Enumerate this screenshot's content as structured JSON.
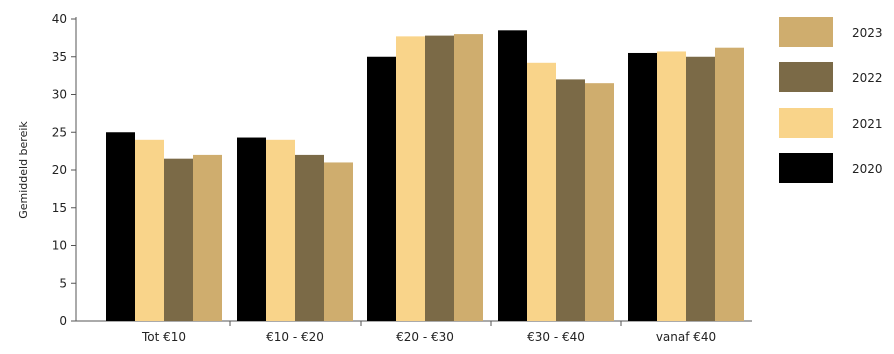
{
  "chart_data": {
    "type": "bar",
    "title": "",
    "xlabel": "",
    "ylabel": "Gemiddeld bereik",
    "ylim": [
      0,
      40
    ],
    "yticks": [
      0,
      5,
      10,
      15,
      20,
      25,
      30,
      35,
      40
    ],
    "grid": false,
    "legend_position": "right",
    "categories": [
      "Tot €10",
      "€10 - €20",
      "€20 - €30",
      "€30 - €40",
      "vanaf €40"
    ],
    "series": [
      {
        "name": "2020",
        "color": "#000000",
        "values": [
          25.0,
          24.3,
          35.0,
          38.5,
          35.5
        ]
      },
      {
        "name": "2021",
        "color": "#f9d48a",
        "values": [
          24.0,
          24.0,
          37.7,
          34.2,
          35.7
        ]
      },
      {
        "name": "2022",
        "color": "#7b6a47",
        "values": [
          21.5,
          22.0,
          37.8,
          32.0,
          35.0
        ]
      },
      {
        "name": "2023",
        "color": "#cfad6e",
        "values": [
          22.0,
          21.0,
          38.0,
          31.5,
          36.2
        ]
      }
    ],
    "legend_order": [
      "2023",
      "2022",
      "2021",
      "2020"
    ]
  }
}
